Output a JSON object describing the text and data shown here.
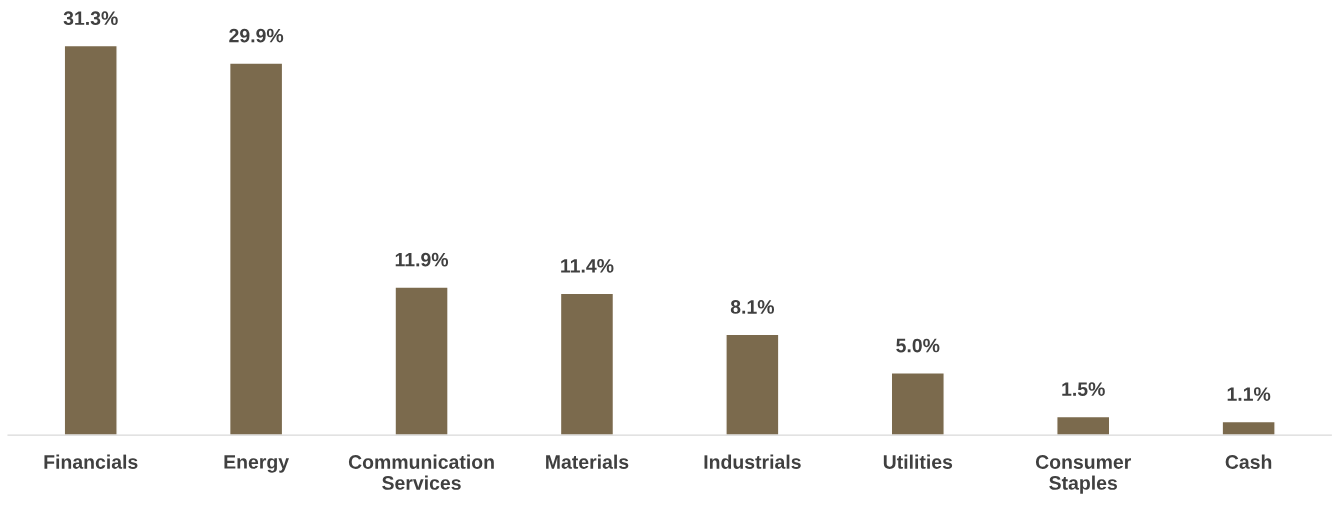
{
  "chart_data": {
    "type": "bar",
    "categories": [
      "Financials",
      "Energy",
      "Communication\nServices",
      "Materials",
      "Industrials",
      "Utilities",
      "Consumer\nStaples",
      "Cash"
    ],
    "values": [
      31.3,
      29.9,
      11.9,
      11.4,
      8.1,
      5.0,
      1.5,
      1.1
    ],
    "value_labels": [
      "31.3%",
      "29.9%",
      "11.9%",
      "11.4%",
      "8.1%",
      "5.0%",
      "1.5%",
      "1.1%"
    ],
    "color": "#7b6a4d",
    "grid": false,
    "legend": false
  }
}
